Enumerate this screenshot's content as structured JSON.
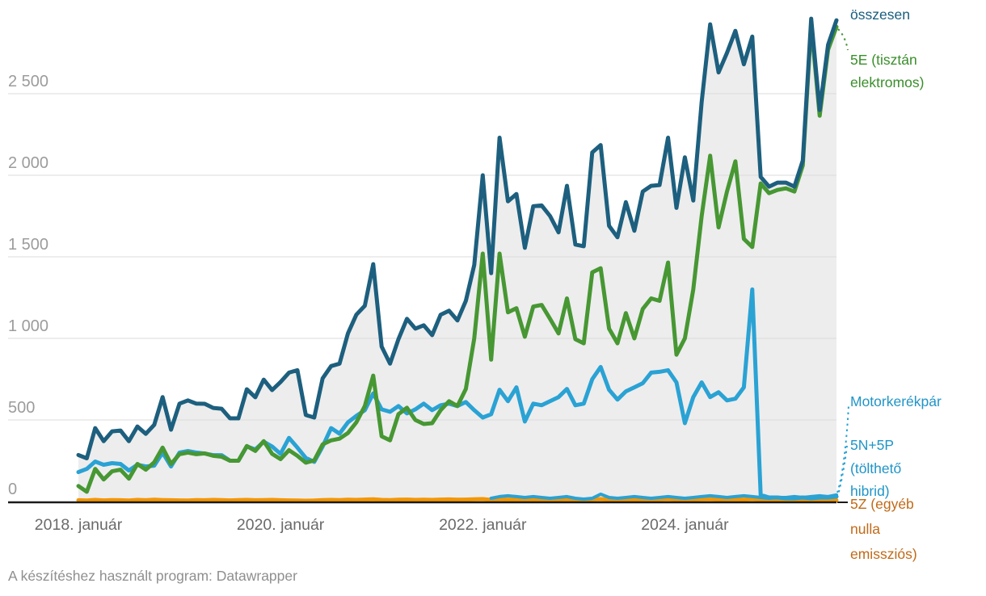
{
  "chart_data": {
    "type": "line",
    "title": "",
    "xlabel": "",
    "ylabel": "",
    "x_start": "2018-01",
    "x_end": "2025-07",
    "x_frequency": "monthly",
    "n_points": 91,
    "grid": "horizontal",
    "legend_position": "direct-labels-right",
    "ylim": [
      0,
      3000
    ],
    "y_axis": {
      "tick_values": [
        0,
        500,
        1000,
        1500,
        2000,
        2500
      ],
      "tick_labels": [
        "0",
        "500",
        "1 000",
        "1 500",
        "2 000",
        "2 500"
      ]
    },
    "x_axis": {
      "ticks": [
        {
          "label": "2018. január",
          "month_index": 0
        },
        {
          "label": "2020. január",
          "month_index": 24
        },
        {
          "label": "2022. január",
          "month_index": 48
        },
        {
          "label": "2024. január",
          "month_index": 72
        }
      ]
    },
    "series": [
      {
        "id": "osszesen",
        "label_lines": [
          "összesen"
        ],
        "color": "#1d5f7e",
        "label_color": "#175d7d",
        "line_width": 5,
        "area_fill": "#ededed",
        "values": [
          285,
          265,
          450,
          370,
          430,
          435,
          370,
          460,
          415,
          470,
          640,
          440,
          600,
          620,
          600,
          599,
          574,
          569,
          510,
          510,
          688,
          639,
          747,
          683,
          732,
          790,
          805,
          530,
          515,
          755,
          830,
          845,
          1030,
          1145,
          1200,
          1455,
          950,
          845,
          995,
          1120,
          1060,
          1080,
          1020,
          1145,
          1170,
          1110,
          1230,
          1450,
          2000,
          1400,
          2230,
          1840,
          1885,
          1555,
          1810,
          1815,
          1750,
          1650,
          1935,
          1575,
          1565,
          2140,
          2185,
          1690,
          1620,
          1835,
          1660,
          1900,
          1935,
          1940,
          2230,
          1800,
          2110,
          1845,
          2450,
          2925,
          2630,
          2750,
          2885,
          2680,
          2850,
          1990,
          1930,
          1955,
          1955,
          1930,
          2090,
          2960,
          2400,
          2800,
          2950
        ]
      },
      {
        "id": "e5",
        "label_lines": [
          "5E (tisztán",
          "elektromos)"
        ],
        "color": "#479733",
        "label_color": "#3a8e2b",
        "line_width": 5,
        "area_fill": null,
        "values": [
          95,
          60,
          200,
          135,
          185,
          195,
          140,
          230,
          195,
          240,
          330,
          230,
          290,
          300,
          290,
          295,
          280,
          275,
          250,
          250,
          340,
          310,
          370,
          292,
          260,
          315,
          280,
          238,
          252,
          350,
          375,
          385,
          420,
          485,
          585,
          772,
          400,
          375,
          535,
          575,
          500,
          475,
          480,
          560,
          615,
          585,
          690,
          1000,
          1520,
          870,
          1520,
          1160,
          1185,
          1010,
          1195,
          1205,
          1120,
          1030,
          1245,
          995,
          970,
          1405,
          1430,
          1060,
          970,
          1155,
          1000,
          1180,
          1245,
          1230,
          1465,
          900,
          1000,
          1300,
          1750,
          2120,
          1680,
          1900,
          2085,
          1610,
          1560,
          1950,
          1890,
          1910,
          1920,
          1900,
          2060,
          2925,
          2365,
          2770,
          2910
        ]
      },
      {
        "id": "moto",
        "label_lines": [
          "Motorkerékpár"
        ],
        "color": "#2aa2d4",
        "label_color": "#2095c8",
        "line_width": 4,
        "area_fill": null,
        "values": [
          null,
          null,
          null,
          null,
          null,
          null,
          null,
          null,
          null,
          null,
          null,
          null,
          null,
          null,
          null,
          null,
          null,
          null,
          null,
          null,
          null,
          null,
          null,
          null,
          null,
          null,
          null,
          null,
          null,
          null,
          null,
          null,
          null,
          null,
          null,
          null,
          null,
          null,
          null,
          null,
          null,
          null,
          null,
          null,
          null,
          null,
          null,
          null,
          null,
          20,
          30,
          35,
          30,
          25,
          30,
          25,
          20,
          25,
          30,
          20,
          15,
          20,
          45,
          25,
          20,
          25,
          30,
          25,
          20,
          25,
          30,
          25,
          20,
          25,
          30,
          35,
          30,
          25,
          30,
          35,
          30,
          25,
          20,
          25,
          25,
          30,
          25,
          30,
          35,
          30,
          40
        ]
      },
      {
        "id": "n5p",
        "label_lines": [
          "5N+5P",
          "(tölthető",
          "hibrid)"
        ],
        "color": "#2aa2d4",
        "label_color": "#2095c8",
        "line_width": 5,
        "area_fill": null,
        "values": [
          180,
          200,
          245,
          225,
          235,
          230,
          190,
          225,
          215,
          220,
          300,
          215,
          300,
          310,
          300,
          294,
          284,
          284,
          250,
          250,
          338,
          319,
          367,
          337,
          292,
          390,
          330,
          267,
          243,
          337,
          450,
          416,
          485,
          525,
          560,
          663,
          565,
          550,
          585,
          540,
          565,
          600,
          560,
          590,
          600,
          585,
          610,
          560,
          515,
          535,
          685,
          615,
          700,
          490,
          600,
          590,
          615,
          640,
          690,
          590,
          600,
          750,
          825,
          685,
          625,
          675,
          700,
          725,
          790,
          795,
          805,
          730,
          480,
          640,
          730,
          640,
          670,
          620,
          630,
          700,
          1300,
          40,
          25,
          25,
          20,
          20,
          25,
          20,
          25,
          25,
          30
        ]
      },
      {
        "id": "z5",
        "label_lines": [
          "5Z (egyéb",
          "nulla",
          "emissziós)"
        ],
        "color": "#f49600",
        "label_color": "#c06a18",
        "line_width": 5,
        "area_fill": null,
        "values": [
          8,
          6,
          10,
          7,
          9,
          8,
          6,
          10,
          8,
          11,
          9,
          8,
          7,
          6,
          9,
          8,
          10,
          9,
          7,
          9,
          10,
          8,
          9,
          10,
          8,
          7,
          6,
          5,
          6,
          9,
          10,
          9,
          11,
          10,
          12,
          14,
          10,
          9,
          11,
          12,
          10,
          11,
          10,
          12,
          13,
          11,
          12,
          14,
          15,
          10,
          14,
          12,
          13,
          10,
          12,
          13,
          11,
          12,
          14,
          11,
          10,
          13,
          15,
          11,
          10,
          12,
          11,
          13,
          14,
          13,
          15,
          11,
          10,
          12,
          14,
          15,
          12,
          13,
          14,
          12,
          15,
          10,
          9,
          10,
          9,
          8,
          10,
          11,
          9,
          10,
          8
        ]
      }
    ],
    "colors": {
      "grid_line": "#dbdbdb",
      "axis_line": "#1a1a1a",
      "y_tick_text": "#9c9c9c",
      "x_tick_text": "#6a6a6a",
      "area_fill": "#ededed"
    }
  },
  "footer": {
    "text": "A készítéshez használt program: Datawrapper"
  }
}
